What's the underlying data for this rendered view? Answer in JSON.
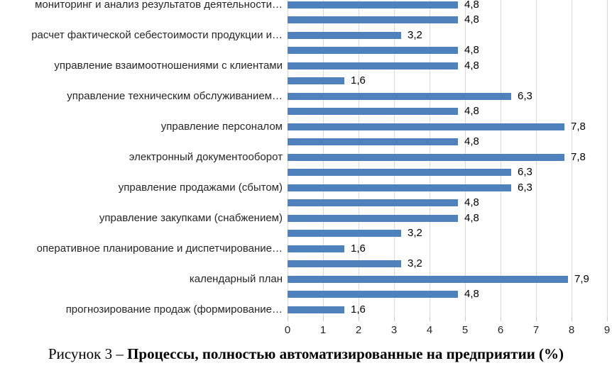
{
  "caption": {
    "prefix": "Рисунок 3 – ",
    "title": "Процессы, полностью автоматизированные на предприятии (%)"
  },
  "chart_data": {
    "type": "bar",
    "orientation": "horizontal",
    "title": "",
    "xlabel": "",
    "ylabel": "",
    "xlim": [
      0,
      9
    ],
    "xticks": [
      "0",
      "1",
      "2",
      "3",
      "4",
      "5",
      "6",
      "7",
      "8",
      "9"
    ],
    "grid": true,
    "legend": false,
    "bar_color": "#4f81bd",
    "gridline_color": "#d9d9d9",
    "categories": [
      "мониторинг и анализ результатов деятельности…",
      "",
      "расчет фактической себестоимости продукции и…",
      "",
      "управление взаимоотношениями с клиентами",
      "",
      "управление техническим обслуживанием…",
      "",
      "управление персоналом",
      "",
      "электронный документооборот",
      "",
      "управление продажами (сбытом)",
      "",
      "управление закупками (снабжением)",
      "",
      "оперативное планирование и диспетчирование…",
      "",
      "календарный план",
      "",
      "прогнозирование продаж (формирование…"
    ],
    "values": [
      4.8,
      4.8,
      3.2,
      4.8,
      4.8,
      1.6,
      6.3,
      4.8,
      7.8,
      4.8,
      7.8,
      6.3,
      6.3,
      4.8,
      4.8,
      3.2,
      1.6,
      3.2,
      7.9,
      4.8,
      1.6
    ],
    "value_labels": [
      "4,8",
      "4,8",
      "3,2",
      "4,8",
      "4,8",
      "1,6",
      "6,3",
      "4,8",
      "7,8",
      "4,8",
      "7,8",
      "6,3",
      "6,3",
      "4,8",
      "4,8",
      "3,2",
      "1,6",
      "3,2",
      "7,9",
      "4,8",
      "1,6"
    ]
  }
}
